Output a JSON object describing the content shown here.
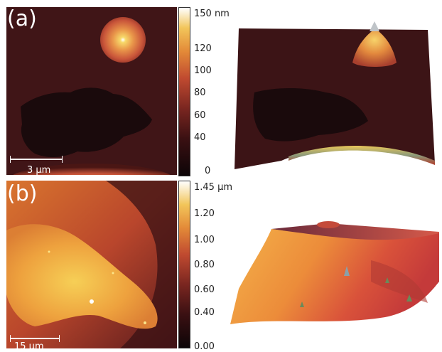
{
  "panel_a": {
    "label": "(a)",
    "scale_bar": "3 µm",
    "colorbar_ticks": [
      "150 nm",
      "120",
      "100",
      "80",
      "60",
      "40",
      "0"
    ]
  },
  "panel_b": {
    "label": "(b)",
    "scale_bar": "15 µm",
    "colorbar_ticks": [
      "1.45 µm",
      "1.20",
      "1.00",
      "0.80",
      "0.60",
      "0.40",
      "0.00"
    ]
  },
  "colors": {
    "low": "#120608",
    "mid_dark": "#5a1a1c",
    "mid": "#b03a2a",
    "orange": "#e07a2a",
    "yellow": "#f3c34a",
    "high": "#ffffff"
  }
}
